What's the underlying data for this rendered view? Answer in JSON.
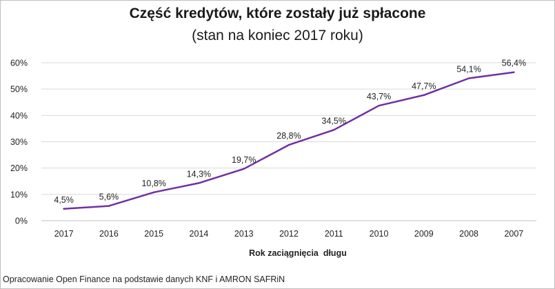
{
  "chart_data": {
    "type": "line",
    "title": "Część kredytów, które zostały już spłacone",
    "subtitle": "(stan na koniec 2017 roku)",
    "xlabel": "Rok zaciągnięcia  długu",
    "ylabel": "",
    "categories": [
      "2017",
      "2016",
      "2015",
      "2014",
      "2013",
      "2012",
      "2011",
      "2010",
      "2009",
      "2008",
      "2007"
    ],
    "series": [
      {
        "values": [
          4.5,
          5.6,
          10.8,
          14.3,
          19.7,
          28.8,
          34.5,
          43.7,
          47.7,
          54.1,
          56.4
        ],
        "labels": [
          "4,5%",
          "5,6%",
          "10,8%",
          "14,3%",
          "19,7%",
          "28,8%",
          "34,5%",
          "43,7%",
          "47,7%",
          "54,1%",
          "56,4%"
        ],
        "color": "#7030a0"
      }
    ],
    "ylim": [
      0,
      60
    ],
    "yticks": [
      0,
      10,
      20,
      30,
      40,
      50,
      60
    ],
    "ytick_labels": [
      "0%",
      "10%",
      "20%",
      "30%",
      "40%",
      "50%",
      "60%"
    ],
    "grid": true,
    "legend": "none",
    "source": "Opracowanie Open Finance na podstawie danych KNF i AMRON SAFRiN"
  },
  "colors": {
    "line": "#7030a0",
    "grid": "#d9d9d9",
    "axis": "#bfbfbf"
  }
}
